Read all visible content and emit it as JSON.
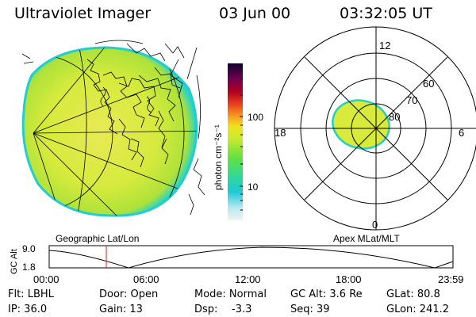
{
  "header": {
    "title": "Ultraviolet Imager",
    "date": "03 Jun 00",
    "time": "03:32:05 UT"
  },
  "colorbar": {
    "unit_label": "photon cm⁻²s⁻¹",
    "ticks": [
      "100",
      "10"
    ]
  },
  "polar": {
    "mlt_labels": {
      "top": "12",
      "left": "18",
      "right": "6",
      "bottom": "0"
    },
    "lat_labels": [
      "60",
      "70",
      "80"
    ]
  },
  "plot_labels": {
    "geographic": "Geographic Lat/Lon",
    "apex": "Apex MLat/MLT"
  },
  "altitude_plot": {
    "ylabel": "GC Alt",
    "yticks": [
      "9.0",
      "1.8"
    ],
    "xticks": [
      "00:00",
      "06:00",
      "12:00",
      "18:00",
      "23:59"
    ]
  },
  "info": {
    "row1": [
      "Flt: LBHL",
      "Door: Open",
      "Mode: Normal",
      "GC Alt: 3.6 Re",
      "GLat: 80.8"
    ],
    "row2": [
      "IP: 36.0",
      "Gain: 13",
      "Dsp:",
      "-3.3",
      "Seq: 39",
      "GLon: 241.2"
    ]
  },
  "colors": {
    "image_base": "#e0e842",
    "image_edge": "#1fd6c8",
    "time_marker": "#cc2222"
  }
}
